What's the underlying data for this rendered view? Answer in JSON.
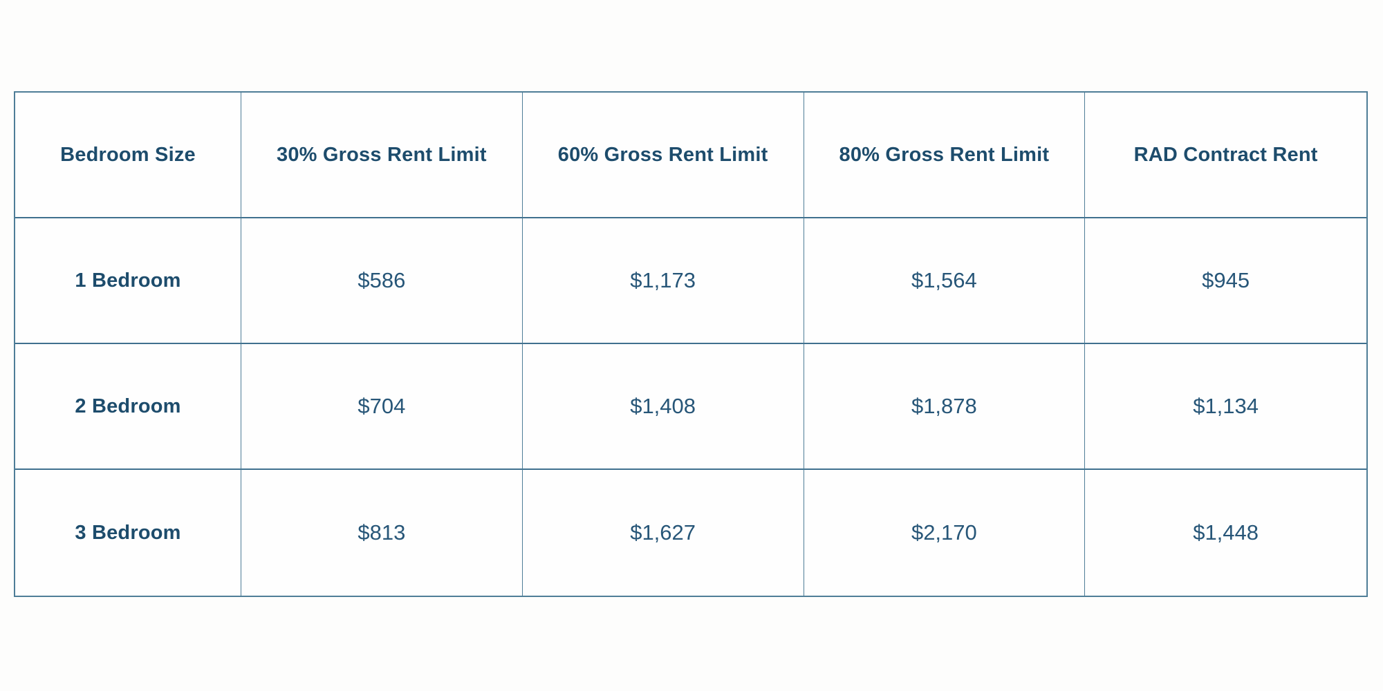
{
  "table": {
    "headers": [
      "Bedroom Size",
      "30% Gross Rent Limit",
      "60% Gross Rent Limit",
      "80% Gross Rent Limit",
      "RAD Contract Rent"
    ],
    "rows": [
      {
        "label": "1 Bedroom",
        "values": [
          "$586",
          "$1,173",
          "$1,564",
          "$945"
        ]
      },
      {
        "label": "2 Bedroom",
        "values": [
          "$704",
          "$1,408",
          "$1,878",
          "$1,134"
        ]
      },
      {
        "label": "3 Bedroom",
        "values": [
          "$813",
          "$1,627",
          "$2,170",
          "$1,448"
        ]
      }
    ]
  },
  "colors": {
    "border": "#4e7d97",
    "row_divider": "#3f708e",
    "header_text": "#1d4c6c",
    "value_text": "#275678",
    "page_background": "#fdfdfc",
    "cell_background": "#fefefe"
  }
}
